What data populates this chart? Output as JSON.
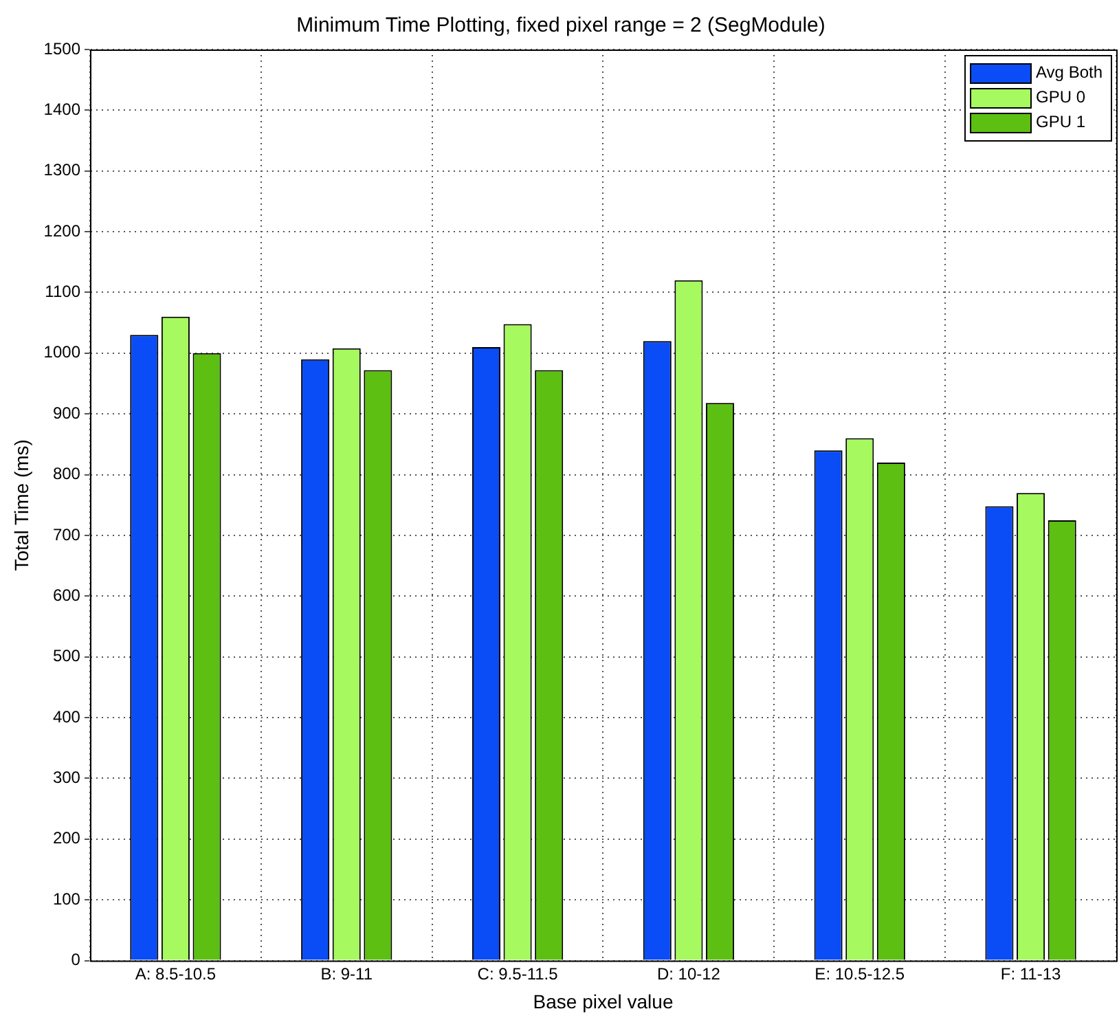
{
  "chart_data": {
    "type": "bar",
    "title": "Minimum Time Plotting, fixed pixel range = 2 (SegModule)",
    "xlabel": "Base pixel value",
    "ylabel": "Total Time (ms)",
    "categories": [
      "A: 8.5-10.5",
      "B: 9-11",
      "C: 9.5-11.5",
      "D: 10-12",
      "E: 10.5-12.5",
      "F: 11-13"
    ],
    "series": [
      {
        "name": "Avg Both",
        "color": "#0a4cf5",
        "values": [
          1030,
          990,
          1010,
          1020,
          840,
          748
        ]
      },
      {
        "name": "GPU 0",
        "color": "#a6f95e",
        "values": [
          1060,
          1008,
          1048,
          1120,
          860,
          770
        ]
      },
      {
        "name": "GPU 1",
        "color": "#5cbf12",
        "values": [
          1000,
          972,
          972,
          918,
          820,
          725
        ]
      }
    ],
    "ylim": [
      0,
      1500
    ],
    "yticks": [
      0,
      100,
      200,
      300,
      400,
      500,
      600,
      700,
      800,
      900,
      1000,
      1100,
      1200,
      1300,
      1400,
      1500
    ],
    "grid": true,
    "legend": "top right"
  }
}
